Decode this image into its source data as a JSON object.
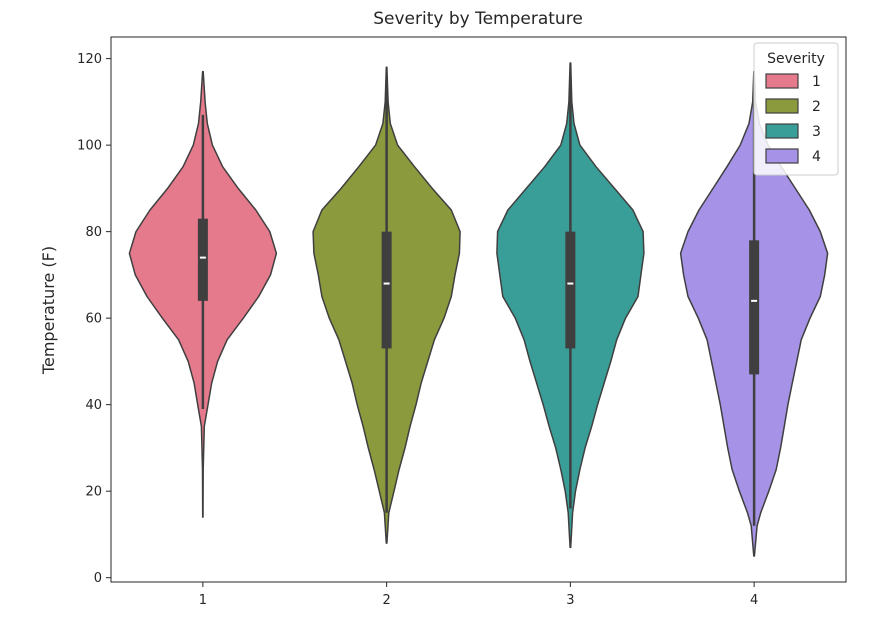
{
  "chart_data": {
    "type": "violin",
    "title": "Severity by Temperature",
    "xlabel": "",
    "ylabel": "Temperature (F)",
    "ylim": [
      -1,
      125
    ],
    "yticks": [
      0,
      20,
      40,
      60,
      80,
      100,
      120
    ],
    "categories": [
      "1",
      "2",
      "3",
      "4"
    ],
    "legend": {
      "title": "Severity",
      "placement": "top-right"
    },
    "series": [
      {
        "name": "1",
        "color": "#e67a8d",
        "min": 14,
        "max": 117,
        "q1": 64,
        "median": 74,
        "q3": 83,
        "whisker_low": 39,
        "whisker_high": 107,
        "density": [
          [
            14,
            0.002
          ],
          [
            25,
            0.005
          ],
          [
            35,
            0.02
          ],
          [
            40,
            0.07
          ],
          [
            45,
            0.12
          ],
          [
            50,
            0.2
          ],
          [
            55,
            0.33
          ],
          [
            60,
            0.55
          ],
          [
            65,
            0.76
          ],
          [
            70,
            0.92
          ],
          [
            75,
            1.0
          ],
          [
            80,
            0.91
          ],
          [
            85,
            0.72
          ],
          [
            90,
            0.48
          ],
          [
            95,
            0.27
          ],
          [
            100,
            0.13
          ],
          [
            105,
            0.06
          ],
          [
            110,
            0.03
          ],
          [
            117,
            0.004
          ]
        ]
      },
      {
        "name": "2",
        "color": "#8a9a3c",
        "min": 8,
        "max": 118,
        "q1": 53,
        "median": 68,
        "q3": 80,
        "whisker_low": 15,
        "whisker_high": 115,
        "density": [
          [
            8,
            0.004
          ],
          [
            15,
            0.03
          ],
          [
            20,
            0.1
          ],
          [
            25,
            0.17
          ],
          [
            30,
            0.25
          ],
          [
            35,
            0.32
          ],
          [
            40,
            0.4
          ],
          [
            45,
            0.47
          ],
          [
            50,
            0.56
          ],
          [
            55,
            0.65
          ],
          [
            60,
            0.78
          ],
          [
            65,
            0.88
          ],
          [
            70,
            0.93
          ],
          [
            75,
            0.99
          ],
          [
            80,
            1.0
          ],
          [
            85,
            0.88
          ],
          [
            90,
            0.62
          ],
          [
            95,
            0.38
          ],
          [
            100,
            0.15
          ],
          [
            105,
            0.05
          ],
          [
            110,
            0.02
          ],
          [
            118,
            0.004
          ]
        ]
      },
      {
        "name": "3",
        "color": "#3a9e98",
        "min": 7,
        "max": 119,
        "q1": 53,
        "median": 68,
        "q3": 80,
        "whisker_low": 16,
        "whisker_high": 115,
        "density": [
          [
            7,
            0.004
          ],
          [
            15,
            0.03
          ],
          [
            20,
            0.07
          ],
          [
            25,
            0.13
          ],
          [
            30,
            0.2
          ],
          [
            35,
            0.29
          ],
          [
            40,
            0.37
          ],
          [
            45,
            0.46
          ],
          [
            50,
            0.55
          ],
          [
            55,
            0.63
          ],
          [
            60,
            0.75
          ],
          [
            65,
            0.92
          ],
          [
            70,
            0.96
          ],
          [
            75,
            1.0
          ],
          [
            80,
            0.99
          ],
          [
            85,
            0.85
          ],
          [
            90,
            0.6
          ],
          [
            95,
            0.35
          ],
          [
            100,
            0.13
          ],
          [
            105,
            0.05
          ],
          [
            110,
            0.02
          ],
          [
            119,
            0.004
          ]
        ]
      },
      {
        "name": "4",
        "color": "#a693e8",
        "min": 5,
        "max": 117,
        "q1": 47,
        "median": 64,
        "q3": 78,
        "whisker_low": 12,
        "whisker_high": 110,
        "density": [
          [
            5,
            0.004
          ],
          [
            12,
            0.04
          ],
          [
            15,
            0.09
          ],
          [
            20,
            0.2
          ],
          [
            25,
            0.3
          ],
          [
            30,
            0.36
          ],
          [
            35,
            0.41
          ],
          [
            40,
            0.46
          ],
          [
            45,
            0.52
          ],
          [
            50,
            0.58
          ],
          [
            55,
            0.64
          ],
          [
            60,
            0.76
          ],
          [
            65,
            0.9
          ],
          [
            70,
            0.96
          ],
          [
            75,
            1.0
          ],
          [
            80,
            0.9
          ],
          [
            85,
            0.75
          ],
          [
            90,
            0.56
          ],
          [
            95,
            0.37
          ],
          [
            100,
            0.19
          ],
          [
            105,
            0.07
          ],
          [
            110,
            0.02
          ],
          [
            117,
            0.004
          ]
        ]
      }
    ]
  }
}
